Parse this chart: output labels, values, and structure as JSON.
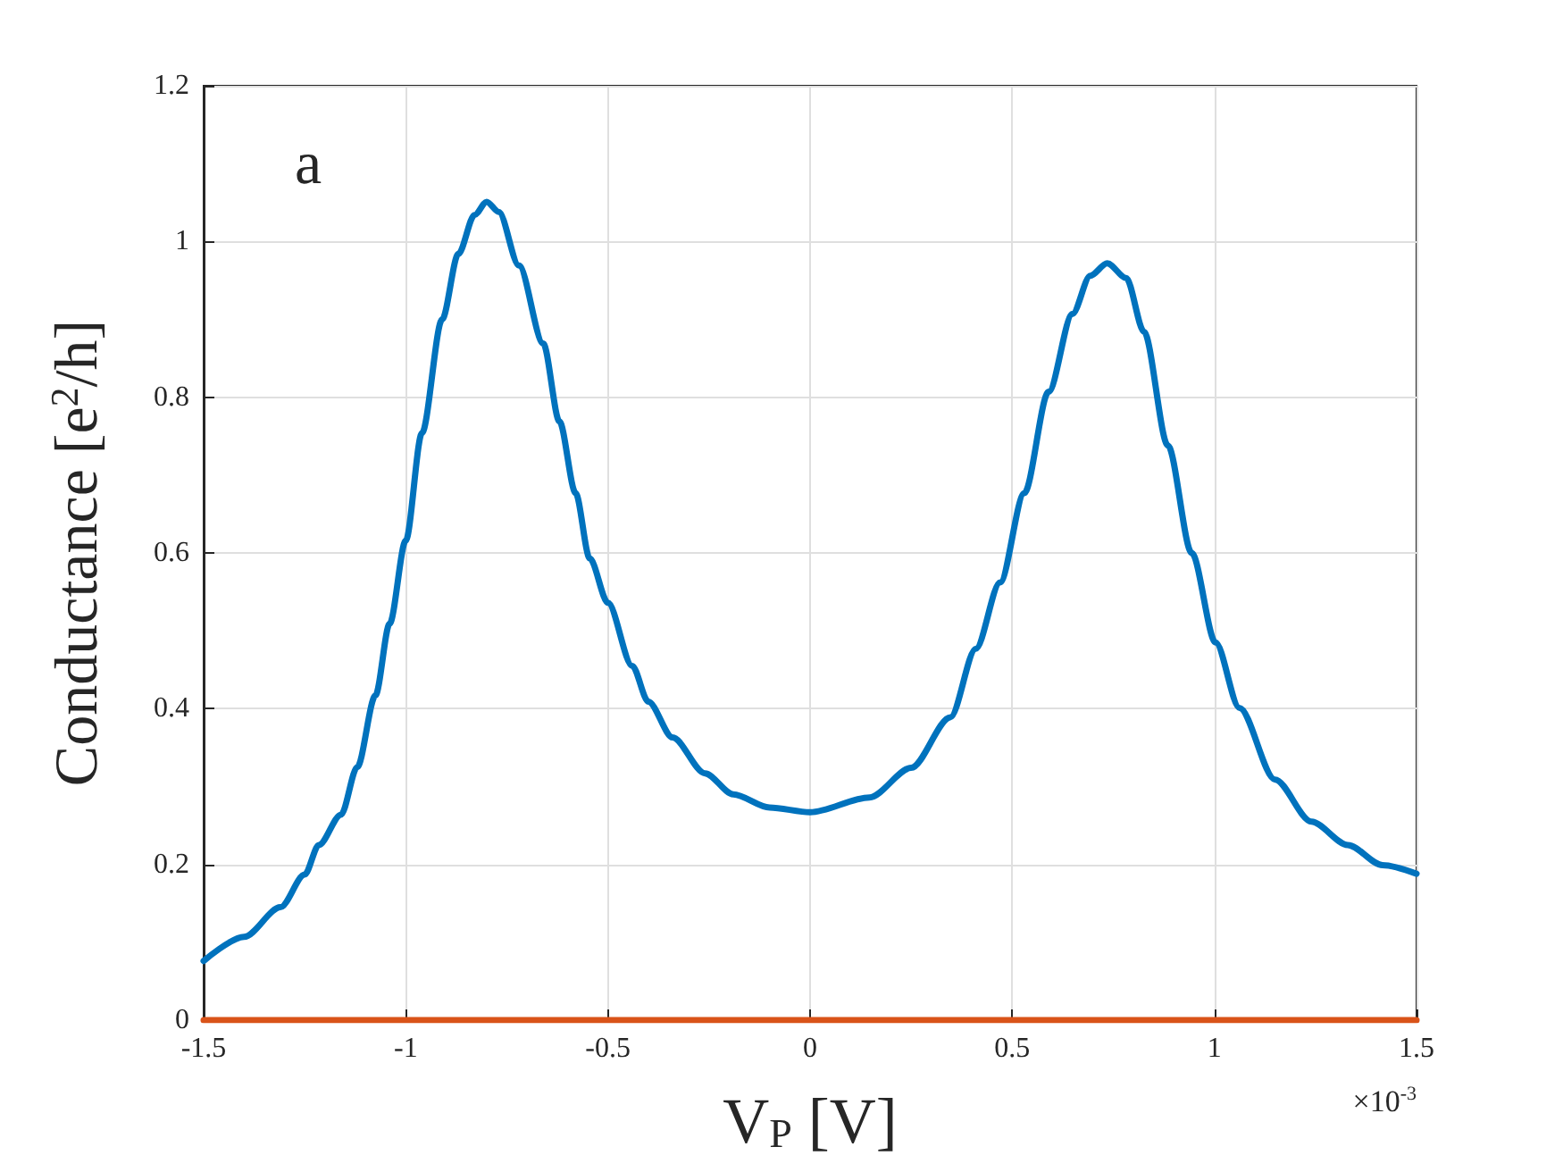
{
  "chart_data": {
    "type": "line",
    "xlabel": "V$_{P}$ [V]",
    "ylabel": "Conductance [e$^{2}$/h]",
    "annotations": [
      "a",
      "×10$^{-3}$"
    ],
    "xlim": [
      -1.5,
      1.5
    ],
    "xticks": [
      -1.5,
      -1,
      -0.5,
      0,
      0.5,
      1,
      1.5
    ],
    "ylim": [
      0,
      1.2
    ],
    "yticks": [
      0,
      0.2,
      0.4,
      0.6,
      0.8,
      1,
      1.2
    ],
    "grid": true,
    "marker": "none",
    "line_style": "solid",
    "series": [
      {
        "color": "#0072bd",
        "x": [
          -1.5,
          -1.4,
          -1.31,
          -1.25,
          -1.215,
          -1.16,
          -1.12,
          -1.075,
          -1.04,
          -1.0,
          -0.96,
          -0.91,
          -0.87,
          -0.83,
          -0.8,
          -0.77,
          -0.72,
          -0.66,
          -0.62,
          -0.58,
          -0.545,
          -0.5,
          -0.44,
          -0.4,
          -0.34,
          -0.26,
          -0.19,
          -0.1,
          0,
          0.147,
          0.25,
          0.347,
          0.41,
          0.47,
          0.53,
          0.59,
          0.649,
          0.693,
          0.735,
          0.782,
          0.826,
          0.885,
          0.944,
          1.003,
          1.062,
          1.15,
          1.24,
          1.33,
          1.416,
          1.5
        ],
        "values": [
          0.076,
          0.107,
          0.145,
          0.187,
          0.225,
          0.264,
          0.325,
          0.417,
          0.509,
          0.616,
          0.754,
          0.9,
          0.984,
          1.034,
          1.051,
          1.038,
          0.969,
          0.869,
          0.769,
          0.677,
          0.593,
          0.536,
          0.455,
          0.409,
          0.363,
          0.317,
          0.29,
          0.273,
          0.267,
          0.286,
          0.324,
          0.389,
          0.477,
          0.562,
          0.677,
          0.807,
          0.907,
          0.956,
          0.972,
          0.953,
          0.884,
          0.738,
          0.6,
          0.485,
          0.401,
          0.309,
          0.255,
          0.225,
          0.199,
          0.188
        ]
      },
      {
        "color": "#d95319",
        "x": [
          -1.5,
          1.5
        ],
        "values": [
          0,
          0
        ]
      }
    ]
  }
}
